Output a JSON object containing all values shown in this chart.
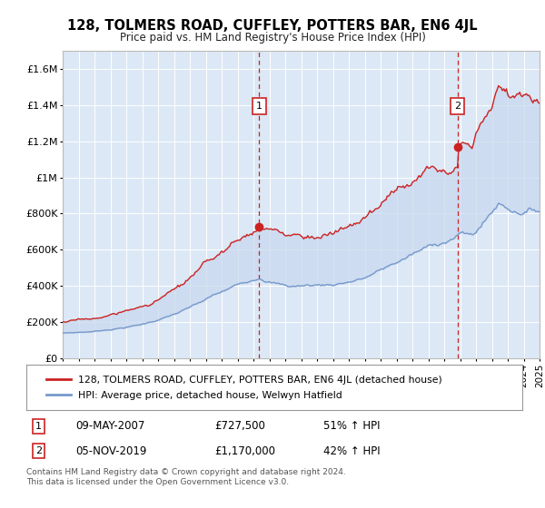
{
  "title": "128, TOLMERS ROAD, CUFFLEY, POTTERS BAR, EN6 4JL",
  "subtitle": "Price paid vs. HM Land Registry's House Price Index (HPI)",
  "ylabel_ticks": [
    "£0",
    "£200K",
    "£400K",
    "£600K",
    "£800K",
    "£1M",
    "£1.2M",
    "£1.4M",
    "£1.6M"
  ],
  "ylim": [
    0,
    1700000
  ],
  "ytick_vals": [
    0,
    200000,
    400000,
    600000,
    800000,
    1000000,
    1200000,
    1400000,
    1600000
  ],
  "x_start_year": 1995,
  "x_end_year": 2025,
  "red_line_color": "#cc2222",
  "blue_line_color": "#7799cc",
  "fill_color": "#c8d8ee",
  "marker1_date": 2007.35,
  "marker1_value": 727500,
  "marker1_label": "1",
  "marker2_date": 2019.84,
  "marker2_value": 1170000,
  "marker2_label": "2",
  "legend_red": "128, TOLMERS ROAD, CUFFLEY, POTTERS BAR, EN6 4JL (detached house)",
  "legend_blue": "HPI: Average price, detached house, Welwyn Hatfield",
  "footer": "Contains HM Land Registry data © Crown copyright and database right 2024.\nThis data is licensed under the Open Government Licence v3.0.",
  "plot_bg_color": "#dce8f5",
  "fig_bg_color": "#ffffff",
  "grid_color": "#ffffff",
  "dashed_line_color": "#cc2222"
}
